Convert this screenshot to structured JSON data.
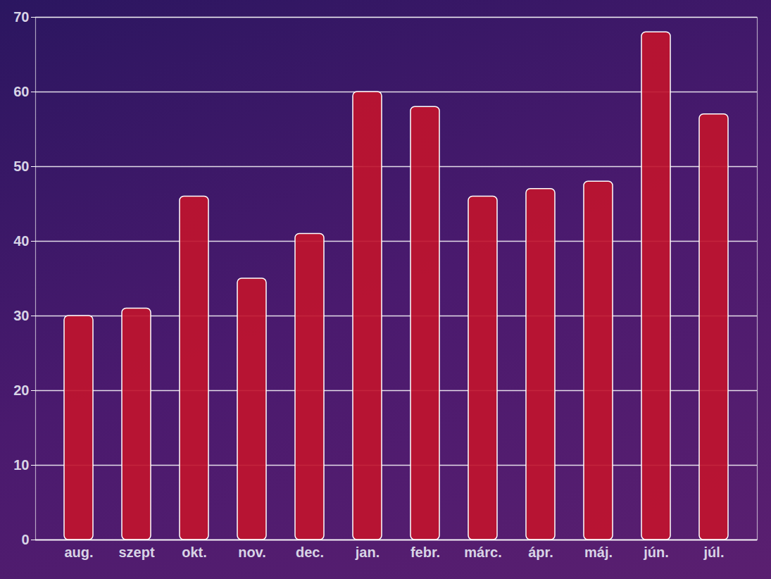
{
  "chart_data": {
    "type": "bar",
    "categories": [
      "aug.",
      "szept",
      "okt.",
      "nov.",
      "dec.",
      "jan.",
      "febr.",
      "márc.",
      "ápr.",
      "máj.",
      "jún.",
      "júl."
    ],
    "values": [
      30,
      31,
      46,
      35,
      41,
      60,
      58,
      46,
      47,
      48,
      68,
      57
    ],
    "color": "#c0142e",
    "ylim": [
      0,
      70
    ],
    "yticks": [
      0,
      10,
      20,
      30,
      40,
      50,
      60,
      70
    ],
    "grid": true
  }
}
